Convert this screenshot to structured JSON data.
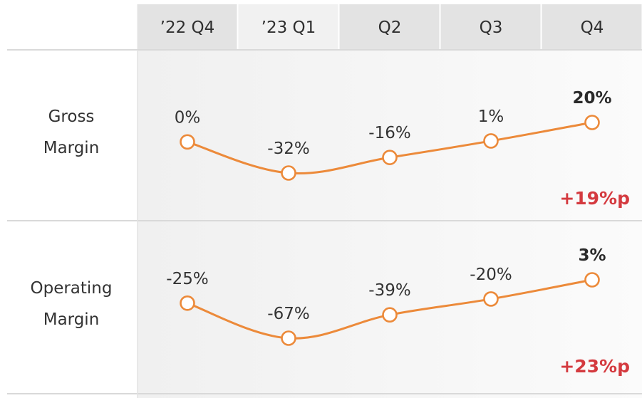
{
  "header": {
    "columns": [
      "’22 Q4",
      "’23 Q1",
      "Q2",
      "Q3",
      "Q4"
    ]
  },
  "chart_data": [
    {
      "type": "line",
      "row_label": [
        "Gross",
        "Margin"
      ],
      "categories": [
        "’22 Q4",
        "’23 Q1",
        "Q2",
        "Q3",
        "Q4"
      ],
      "values": [
        0,
        -32,
        -16,
        1,
        20
      ],
      "value_labels": [
        "0%",
        "-32%",
        "-16%",
        "1%",
        "20%"
      ],
      "highlight_last": true,
      "change_label": "+19%p"
    },
    {
      "type": "line",
      "row_label": [
        "Operating",
        "Margin"
      ],
      "categories": [
        "’22 Q4",
        "’23 Q1",
        "Q2",
        "Q3",
        "Q4"
      ],
      "values": [
        -25,
        -67,
        -39,
        -20,
        3
      ],
      "value_labels": [
        "-25%",
        "-67%",
        "-39%",
        "-20%",
        "3%"
      ],
      "highlight_last": true,
      "change_label": "+23%p"
    }
  ],
  "colors": {
    "line": "#ec8a3a",
    "marker_fill": "#ffffff",
    "change": "#d43a3f",
    "header_bg": "#e3e3e3",
    "header_bg_alt": "#f1f1f1",
    "panel_bg": "#f3f3f3",
    "divider": "#d9d9d9"
  }
}
